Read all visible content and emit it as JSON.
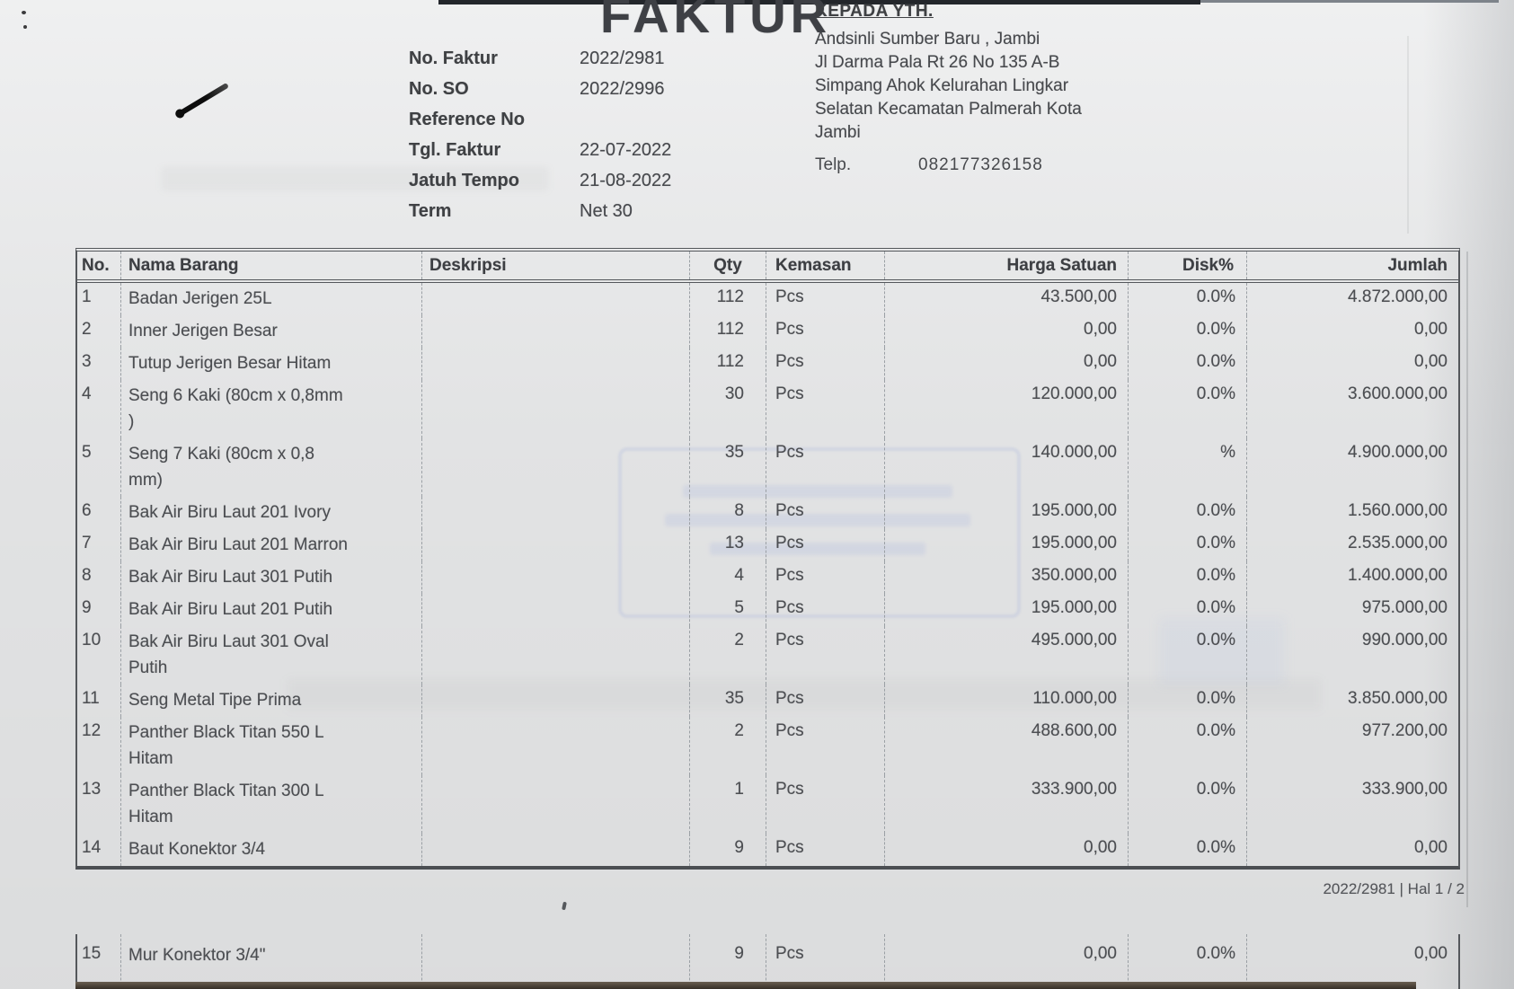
{
  "title": "FAKTUR",
  "meta": {
    "fields": [
      {
        "label": "No. Faktur",
        "value": "2022/2981"
      },
      {
        "label": "No. SO",
        "value": "2022/2996"
      },
      {
        "label": "Reference No",
        "value": ""
      },
      {
        "label": "Tgl. Faktur",
        "value": "22-07-2022"
      },
      {
        "label": "Jatuh Tempo",
        "value": "21-08-2022"
      },
      {
        "label": "Term",
        "value": "Net 30"
      }
    ]
  },
  "recipient": {
    "heading": "KEPADA YTH.",
    "address_lines": [
      "Andsinli Sumber Baru , Jambi",
      "Jl Darma Pala Rt 26 No 135 A-B",
      "Simpang Ahok Kelurahan Lingkar",
      "Selatan Kecamatan Palmerah Kota",
      "Jambi"
    ],
    "phone_label": "Telp.",
    "phone": "082177326158"
  },
  "table": {
    "headers": [
      "No.",
      "Nama Barang",
      "Deskripsi",
      "Qty",
      "Kemasan",
      "Harga Satuan",
      "Disk%",
      "Jumlah"
    ],
    "rows": [
      {
        "no": "1",
        "name": "Badan Jerigen 25L",
        "desc": "",
        "qty": "112",
        "kemasan": "Pcs",
        "harga": "43.500,00",
        "disk": "0.0%",
        "jumlah": "4.872.000,00"
      },
      {
        "no": "2",
        "name": "Inner Jerigen Besar",
        "desc": "",
        "qty": "112",
        "kemasan": "Pcs",
        "harga": "0,00",
        "disk": "0.0%",
        "jumlah": "0,00"
      },
      {
        "no": "3",
        "name": "Tutup Jerigen Besar Hitam",
        "desc": "",
        "qty": "112",
        "kemasan": "Pcs",
        "harga": "0,00",
        "disk": "0.0%",
        "jumlah": "0,00"
      },
      {
        "no": "4",
        "name": "Seng 6 Kaki (80cm x 0,8mm\n)",
        "desc": "",
        "qty": "30",
        "kemasan": "Pcs",
        "harga": "120.000,00",
        "disk": "0.0%",
        "jumlah": "3.600.000,00"
      },
      {
        "no": "5",
        "name": "Seng 7 Kaki (80cm x 0,8\nmm)",
        "desc": "",
        "qty": "35",
        "kemasan": "Pcs",
        "harga": "140.000,00",
        "disk": "%",
        "jumlah": "4.900.000,00"
      },
      {
        "no": "6",
        "name": "Bak Air Biru Laut 201 Ivory",
        "desc": "",
        "qty": "8",
        "kemasan": "Pcs",
        "harga": "195.000,00",
        "disk": "0.0%",
        "jumlah": "1.560.000,00"
      },
      {
        "no": "7",
        "name": "Bak Air Biru Laut 201 Marron",
        "desc": "",
        "qty": "13",
        "kemasan": "Pcs",
        "harga": "195.000,00",
        "disk": "0.0%",
        "jumlah": "2.535.000,00"
      },
      {
        "no": "8",
        "name": "Bak Air Biru Laut 301 Putih",
        "desc": "",
        "qty": "4",
        "kemasan": "Pcs",
        "harga": "350.000,00",
        "disk": "0.0%",
        "jumlah": "1.400.000,00"
      },
      {
        "no": "9",
        "name": "Bak Air Biru Laut 201 Putih",
        "desc": "",
        "qty": "5",
        "kemasan": "Pcs",
        "harga": "195.000,00",
        "disk": "0.0%",
        "jumlah": "975.000,00"
      },
      {
        "no": "10",
        "name": "Bak Air Biru Laut 301 Oval\nPutih",
        "desc": "",
        "qty": "2",
        "kemasan": "Pcs",
        "harga": "495.000,00",
        "disk": "0.0%",
        "jumlah": "990.000,00"
      },
      {
        "no": "11",
        "name": "Seng Metal Tipe Prima",
        "desc": "",
        "qty": "35",
        "kemasan": "Pcs",
        "harga": "110.000,00",
        "disk": "0.0%",
        "jumlah": "3.850.000,00"
      },
      {
        "no": "12",
        "name": "Panther Black Titan 550 L\nHitam",
        "desc": "",
        "qty": "2",
        "kemasan": "Pcs",
        "harga": "488.600,00",
        "disk": "0.0%",
        "jumlah": "977.200,00"
      },
      {
        "no": "13",
        "name": "Panther Black Titan 300 L\nHitam",
        "desc": "",
        "qty": "1",
        "kemasan": "Pcs",
        "harga": "333.900,00",
        "disk": "0.0%",
        "jumlah": "333.900,00"
      },
      {
        "no": "14",
        "name": "Baut Konektor 3/4",
        "desc": "",
        "qty": "9",
        "kemasan": "Pcs",
        "harga": "0,00",
        "disk": "0.0%",
        "jumlah": "0,00"
      }
    ],
    "continuation_rows": [
      {
        "no": "15",
        "name": "Mur Konektor 3/4\"",
        "desc": "",
        "qty": "9",
        "kemasan": "Pcs",
        "harga": "0,00",
        "disk": "0.0%",
        "jumlah": "0,00"
      }
    ]
  },
  "footer": {
    "page_info": "2022/2981 | Hal 1 / 2"
  },
  "colors": {
    "paper": "#e9eaeb",
    "ink": "#4a4c50",
    "border": "#54575b"
  }
}
